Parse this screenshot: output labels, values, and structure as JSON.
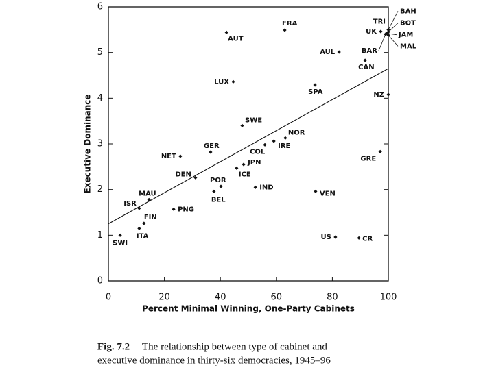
{
  "chart_data": {
    "type": "scatter",
    "x_label": "Percent Minimal Winning, One-Party Cabinets",
    "y_label": "Executive Dominance",
    "caption_label": "Fig. 7.2",
    "caption": [
      "The relationship between type of cabinet and",
      "executive dominance in thirty-six democracies, 1945–96"
    ],
    "labels": [
      "SWI",
      "ITA",
      "FIN",
      "ISR",
      "MAU",
      "PNG",
      "DEN",
      "NET",
      "GER",
      "POR",
      "BEL",
      "ICE",
      "JPN",
      "COL",
      "IRE",
      "NOR",
      "IND",
      "SWE",
      "LUX",
      "AUT",
      "FRA",
      "SPA",
      "VEN",
      "AUL",
      "CAN",
      "NZ",
      "GRE",
      "US",
      "CR",
      "UK",
      "TRI",
      "BAH",
      "BOT",
      "JAM",
      "MAL",
      "BAR"
    ],
    "x": [
      4.2,
      11.0,
      12.7,
      11.0,
      14.5,
      23.3,
      31.1,
      25.7,
      36.5,
      40.2,
      37.7,
      45.8,
      48.3,
      55.9,
      59.1,
      63.2,
      52.5,
      47.8,
      44.6,
      42.2,
      63.0,
      73.8,
      74.0,
      82.4,
      91.7,
      100,
      97.1,
      81.1,
      89.5,
      97.3,
      100,
      100,
      100,
      99.5,
      100,
      99
    ],
    "values": [
      1.0,
      1.15,
      1.26,
      1.59,
      1.78,
      1.57,
      2.26,
      2.73,
      2.82,
      2.07,
      1.96,
      2.47,
      2.55,
      2.98,
      3.06,
      3.13,
      2.05,
      3.4,
      4.36,
      5.44,
      5.49,
      4.29,
      1.96,
      5.01,
      4.83,
      4.08,
      2.83,
      0.96,
      0.94,
      5.46,
      5.5,
      5.5,
      5.45,
      5.42,
      5.38,
      5.4
    ],
    "trend_line": {
      "x": [
        0,
        100
      ],
      "y": [
        1.25,
        4.65
      ]
    },
    "color": "#111111",
    "xlim": [
      0,
      100
    ],
    "xticks": [
      0,
      20,
      40,
      60,
      80,
      100
    ],
    "ylim": [
      0,
      6
    ],
    "yticks": [
      0,
      1,
      2,
      3,
      4,
      5,
      6
    ]
  }
}
